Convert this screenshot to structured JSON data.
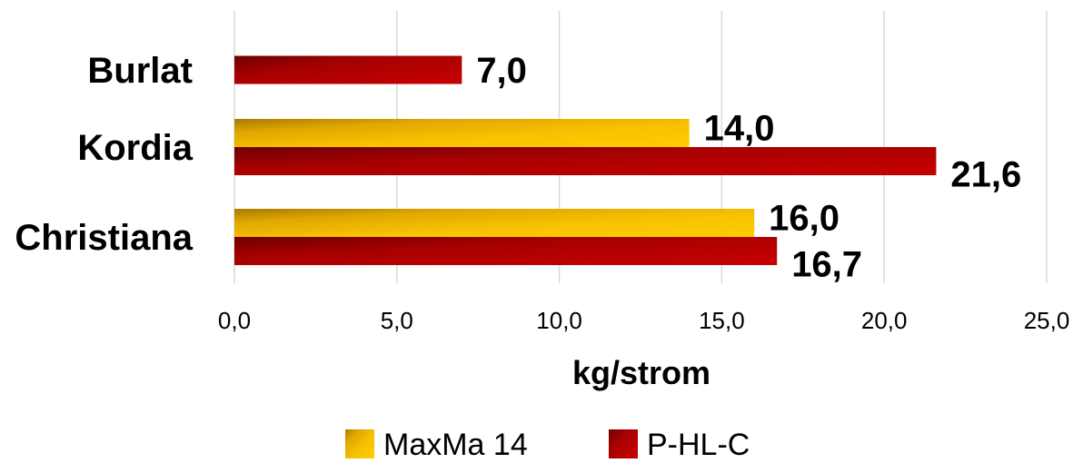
{
  "chart_data": {
    "type": "bar",
    "orientation": "horizontal",
    "categories": [
      "Burlat",
      "Kordia",
      "Christiana"
    ],
    "series": [
      {
        "name": "MaxMa 14",
        "values": [
          null,
          14.0,
          16.0
        ],
        "labels": [
          "",
          "14,0",
          "16,0"
        ],
        "color": "#f2b705"
      },
      {
        "name": "P-HL-C",
        "values": [
          7.0,
          21.6,
          16.7
        ],
        "labels": [
          "7,0",
          "21,6",
          "16,7"
        ],
        "color": "#c00000"
      }
    ],
    "xlim": [
      0,
      25
    ],
    "xticks": [
      0,
      5,
      10,
      15,
      20,
      25
    ],
    "xtick_labels": [
      "0,0",
      "5,0",
      "10,0",
      "15,0",
      "20,0",
      "25,0"
    ],
    "xlabel": "kg/strom",
    "ylabel": "",
    "title": "",
    "grid": "vertical",
    "legend": "bottom"
  }
}
